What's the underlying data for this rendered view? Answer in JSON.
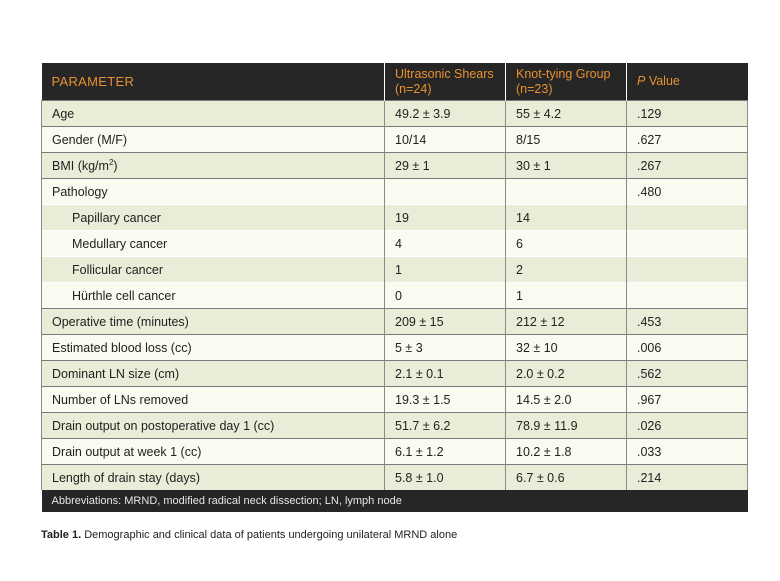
{
  "table": {
    "headers": {
      "parameter": "PARAMETER",
      "col2_line1": "Ultrasonic Shears",
      "col2_line2": "(n=24)",
      "col3_line1": "Knot-tying Group",
      "col3_line2": "(n=23)",
      "p_italic": "P",
      "p_rest": " Value"
    },
    "rows": [
      {
        "parameter": "Age",
        "ultrasonic": "49.2 ± 3.9",
        "knot": "55 ± 4.2",
        "p": ".129"
      },
      {
        "parameter": "Gender (M/F)",
        "ultrasonic": "10/14",
        "knot": "8/15",
        "p": ".627"
      },
      {
        "parameter_base": "BMI (kg/m",
        "parameter_sup": "2",
        "parameter_end": ")",
        "ultrasonic": "29 ± 1",
        "knot": "30 ± 1",
        "p": ".267"
      },
      {
        "parameter": "Pathology",
        "ultrasonic": "",
        "knot": "",
        "p": ".480"
      },
      {
        "parameter": "Papillary cancer",
        "ultrasonic": "19",
        "knot": "14",
        "p": ""
      },
      {
        "parameter": "Medullary cancer",
        "ultrasonic": "4",
        "knot": "6",
        "p": ""
      },
      {
        "parameter": "Follicular cancer",
        "ultrasonic": "1",
        "knot": "2",
        "p": ""
      },
      {
        "parameter": "Hürthle cell cancer",
        "ultrasonic": "0",
        "knot": "1",
        "p": ""
      },
      {
        "parameter": "Operative time (minutes)",
        "ultrasonic": "209 ± 15",
        "knot": "212 ± 12",
        "p": ".453"
      },
      {
        "parameter": "Estimated blood loss (cc)",
        "ultrasonic": "5 ± 3",
        "knot": "32 ± 10",
        "p": ".006"
      },
      {
        "parameter": "Dominant LN size (cm)",
        "ultrasonic": "2.1 ± 0.1",
        "knot": "2.0 ± 0.2",
        "p": ".562"
      },
      {
        "parameter": "Number of LNs removed",
        "ultrasonic": "19.3 ± 1.5",
        "knot": "14.5 ± 2.0",
        "p": ".967"
      },
      {
        "parameter": "Drain output on postoperative day 1 (cc)",
        "ultrasonic": "51.7 ± 6.2",
        "knot": "78.9 ± 11.9",
        "p": ".026"
      },
      {
        "parameter": "Drain output at week 1 (cc)",
        "ultrasonic": "6.1 ± 1.2",
        "knot": "10.2 ± 1.8",
        "p": ".033"
      },
      {
        "parameter": "Length of drain stay (days)",
        "ultrasonic": "5.8 ± 1.0",
        "knot": "6.7 ± 0.6",
        "p": ".214"
      }
    ],
    "footnote": "Abbreviations: MRND, modified radical neck dissection; LN, lymph node"
  },
  "caption": {
    "label": "Table 1.",
    "text": " Demographic and clinical data of patients undergoing unilateral MRND alone"
  },
  "colors": {
    "header_bg": "#262626",
    "header_text": "#e8912f",
    "row_light": "#fafaf0",
    "row_dark": "#eaecd8"
  }
}
